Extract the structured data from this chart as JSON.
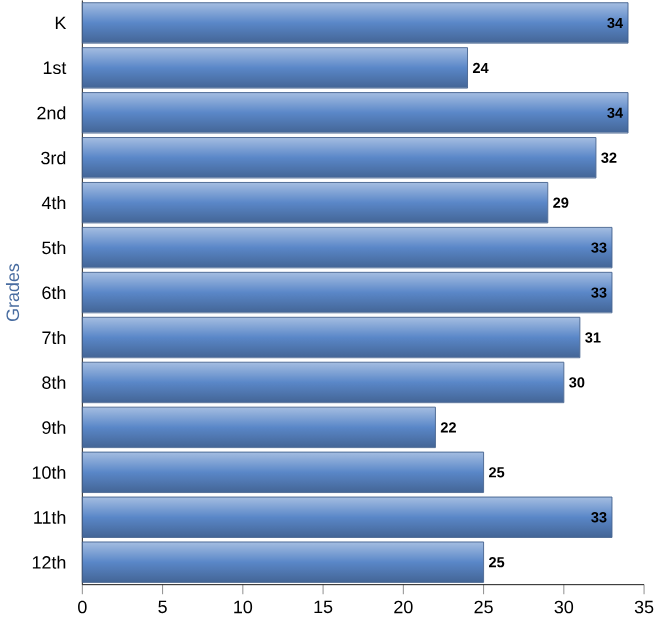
{
  "chart_data": {
    "type": "bar",
    "orientation": "horizontal",
    "ylabel": "Grades",
    "categories": [
      "K",
      "1st",
      "2nd",
      "3rd",
      "4th",
      "5th",
      "6th",
      "7th",
      "8th",
      "9th",
      "10th",
      "11th",
      "12th"
    ],
    "values": [
      34,
      24,
      34,
      32,
      29,
      33,
      33,
      31,
      30,
      22,
      25,
      33,
      25
    ],
    "color": "#5a87c8",
    "xlim": [
      0,
      35
    ],
    "xticks": [
      0,
      5,
      10,
      15,
      20,
      25,
      30,
      35
    ],
    "data_labels": true
  }
}
